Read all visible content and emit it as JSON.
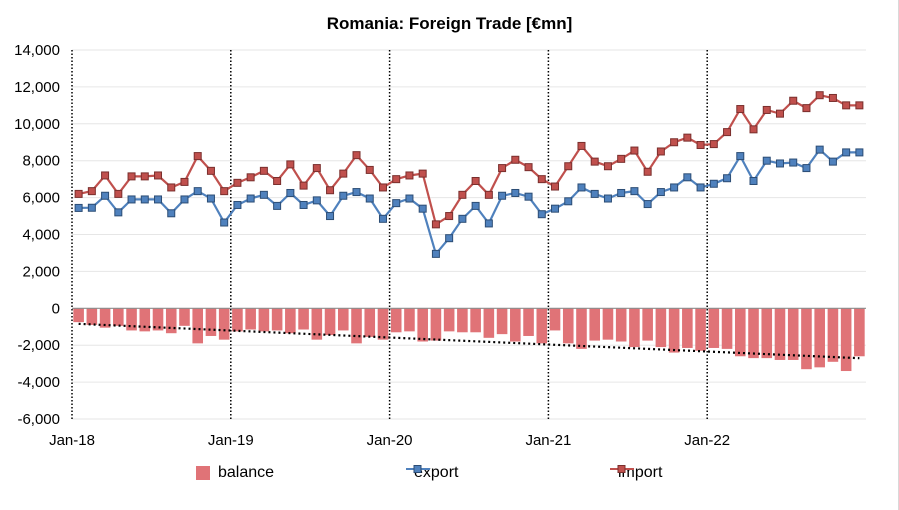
{
  "chart_data": {
    "type": "bar+line",
    "title": "Romania: Foreign Trade [€mn]",
    "xlabel": "",
    "ylabel": "",
    "ylim": [
      -6000,
      14000
    ],
    "yticks": [
      14000,
      12000,
      10000,
      8000,
      6000,
      4000,
      2000,
      0,
      -2000,
      -4000,
      -6000
    ],
    "ytick_labels": [
      "14,000",
      "12,000",
      "10,000",
      "8,000",
      "6,000",
      "4,000",
      "2,000",
      "0",
      "-2,000",
      "-4,000",
      "-6,000"
    ],
    "xtick_labels": [
      "Jan-18",
      "Jan-19",
      "Jan-20",
      "Jan-21",
      "Jan-22"
    ],
    "grid": "horizontal",
    "legend_position": "bottom",
    "annotations": [
      "vertical dotted lines at each January",
      "dotted linear trendline on balance"
    ],
    "x": [
      "2018-01",
      "2018-02",
      "2018-03",
      "2018-04",
      "2018-05",
      "2018-06",
      "2018-07",
      "2018-08",
      "2018-09",
      "2018-10",
      "2018-11",
      "2018-12",
      "2019-01",
      "2019-02",
      "2019-03",
      "2019-04",
      "2019-05",
      "2019-06",
      "2019-07",
      "2019-08",
      "2019-09",
      "2019-10",
      "2019-11",
      "2019-12",
      "2020-01",
      "2020-02",
      "2020-03",
      "2020-04",
      "2020-05",
      "2020-06",
      "2020-07",
      "2020-08",
      "2020-09",
      "2020-10",
      "2020-11",
      "2020-12",
      "2021-01",
      "2021-02",
      "2021-03",
      "2021-04",
      "2021-05",
      "2021-06",
      "2021-07",
      "2021-08",
      "2021-09",
      "2021-10",
      "2021-11",
      "2021-12",
      "2022-01",
      "2022-02",
      "2022-03",
      "2022-04",
      "2022-05",
      "2022-06",
      "2022-07",
      "2022-08",
      "2022-09",
      "2022-10",
      "2022-11",
      "2022-12"
    ],
    "series": [
      {
        "name": "balance",
        "type": "bar",
        "color": "#e07377",
        "values": [
          -750,
          -900,
          -1050,
          -950,
          -1200,
          -1250,
          -1200,
          -1350,
          -950,
          -1900,
          -1500,
          -1700,
          -1250,
          -1150,
          -1250,
          -1200,
          -1350,
          -1150,
          -1700,
          -1450,
          -1200,
          -1900,
          -1550,
          -1700,
          -1300,
          -1250,
          -1800,
          -1750,
          -1250,
          -1300,
          -1300,
          -1600,
          -1400,
          -1800,
          -1500,
          -1900,
          -1200,
          -1900,
          -2200,
          -1750,
          -1700,
          -1800,
          -2100,
          -1750,
          -2100,
          -2400,
          -2150,
          -2300,
          -2150,
          -2200,
          -2600,
          -2700,
          -2700,
          -2800,
          -2800,
          -3300,
          -3200,
          -2900,
          -3400,
          -2600
        ]
      },
      {
        "name": "export",
        "type": "line",
        "color": "#4f81bd",
        "values": [
          5440,
          5450,
          6100,
          5200,
          5900,
          5900,
          5900,
          5150,
          5900,
          6350,
          5950,
          4650,
          5600,
          5950,
          6150,
          5550,
          6250,
          5600,
          5850,
          5000,
          6100,
          6300,
          5950,
          4850,
          5700,
          5950,
          5400,
          2950,
          3800,
          4850,
          5550,
          4600,
          6100,
          6250,
          6050,
          5100,
          5400,
          5800,
          6550,
          6200,
          5950,
          6250,
          6350,
          5650,
          6300,
          6550,
          7100,
          6550,
          6750,
          7050,
          8250,
          6900,
          8000,
          7850,
          7900,
          7600,
          8600,
          7950,
          8450,
          8450
        ]
      },
      {
        "name": "import",
        "type": "line",
        "color": "#c0504d",
        "values": [
          6200,
          6350,
          7200,
          6200,
          7150,
          7150,
          7200,
          6550,
          6850,
          8250,
          7450,
          6350,
          6800,
          7100,
          7450,
          6900,
          7800,
          6650,
          7600,
          6400,
          7300,
          8300,
          7500,
          6550,
          7000,
          7200,
          7300,
          4550,
          5000,
          6150,
          6900,
          6150,
          7600,
          8050,
          7650,
          7000,
          6600,
          7700,
          8800,
          7950,
          7700,
          8100,
          8550,
          7400,
          8500,
          9000,
          9250,
          8850,
          8900,
          9550,
          10800,
          9700,
          10750,
          10550,
          11250,
          10850,
          11550,
          11400,
          11000,
          11000
        ]
      }
    ]
  },
  "legend": {
    "items": [
      {
        "label": "balance",
        "color": "#e07377",
        "marker": "square-swatch"
      },
      {
        "label": "export",
        "color": "#4f81bd",
        "marker": "line-square"
      },
      {
        "label": "import",
        "color": "#c0504d",
        "marker": "line-square"
      }
    ]
  }
}
